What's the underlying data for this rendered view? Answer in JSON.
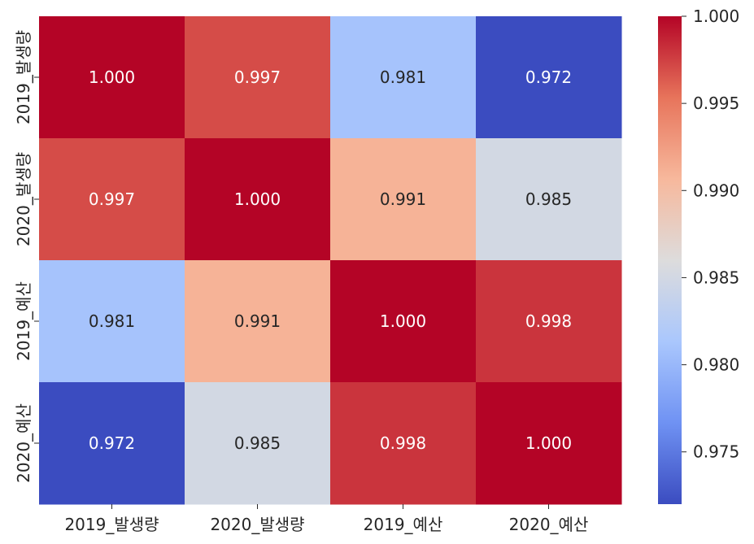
{
  "chart_data": {
    "type": "heatmap",
    "title": "",
    "xlabel": "",
    "ylabel": "",
    "x_categories": [
      "2019_발생량",
      "2020_발생량",
      "2019_예산",
      "2020_예산"
    ],
    "y_categories": [
      "2019_발생량",
      "2020_발생량",
      "2019_예산",
      "2020_예산"
    ],
    "values": [
      [
        1.0,
        0.997,
        0.981,
        0.972
      ],
      [
        0.997,
        1.0,
        0.991,
        0.985
      ],
      [
        0.981,
        0.991,
        1.0,
        0.998
      ],
      [
        0.972,
        0.985,
        0.998,
        1.0
      ]
    ],
    "value_labels": [
      [
        "1.000",
        "0.997",
        "0.981",
        "0.972"
      ],
      [
        "0.997",
        "1.000",
        "0.991",
        "0.985"
      ],
      [
        "0.981",
        "0.991",
        "1.000",
        "0.998"
      ],
      [
        "0.972",
        "0.985",
        "0.998",
        "1.000"
      ]
    ],
    "colormap": "coolwarm",
    "colormap_stops": [
      "#3b4cc0",
      "#6f92f3",
      "#aac7fd",
      "#dddcdc",
      "#f7b89c",
      "#e7745b",
      "#b40426"
    ],
    "vmin": 0.972,
    "vmax": 1.0,
    "colorbar": {
      "ticks": [
        "0.975",
        "0.980",
        "0.985",
        "0.990",
        "0.995",
        "1.000"
      ],
      "tick_values": [
        0.975,
        0.98,
        0.985,
        0.99,
        0.995,
        1.0
      ]
    },
    "grid": false
  }
}
